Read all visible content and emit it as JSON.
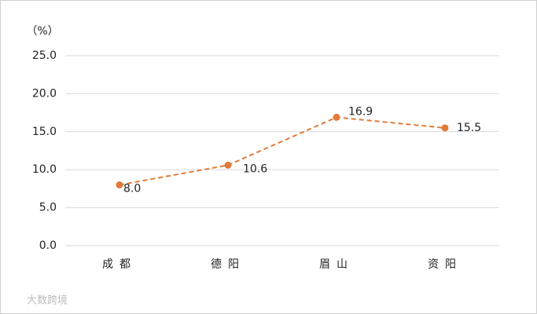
{
  "chart_data": {
    "type": "line",
    "unit_label": "（%）",
    "categories": [
      "成都",
      "德阳",
      "眉山",
      "资阳"
    ],
    "series": [
      {
        "name": null,
        "color": "#e07b39",
        "dashed": true,
        "values": [
          8.0,
          10.6,
          16.9,
          15.5
        ],
        "value_labels": [
          "8.0",
          "10.6",
          "16.9",
          "15.5"
        ]
      }
    ],
    "ylim": [
      0,
      25
    ],
    "yticks": [
      {
        "value": 0,
        "label": "0.0"
      },
      {
        "value": 5,
        "label": "5.0"
      },
      {
        "value": 10,
        "label": "10.0"
      },
      {
        "value": 15,
        "label": "15.0"
      },
      {
        "value": 20,
        "label": "20.0"
      },
      {
        "value": 25,
        "label": "25.0"
      }
    ],
    "grid": true
  },
  "watermark": "大数跨境"
}
